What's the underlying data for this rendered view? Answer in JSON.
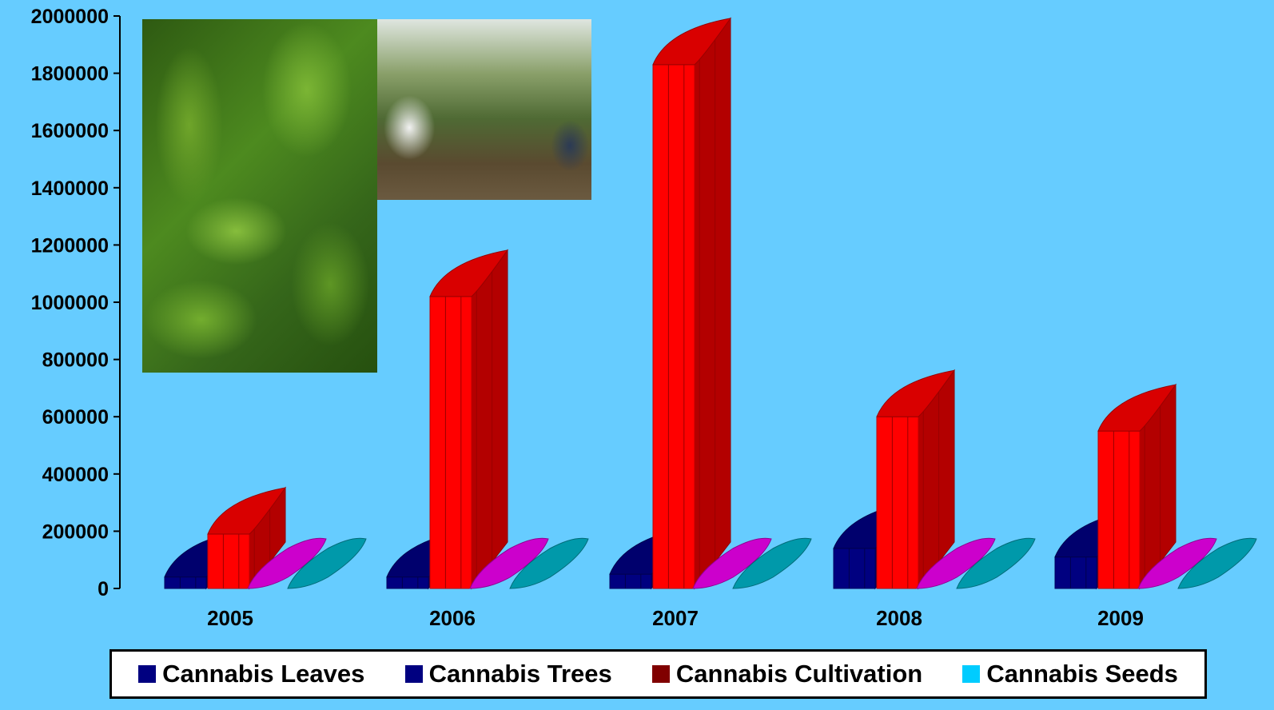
{
  "chart_data": {
    "type": "bar",
    "categories": [
      "2005",
      "2006",
      "2007",
      "2008",
      "2009"
    ],
    "ylim": [
      0,
      2000000
    ],
    "yticks": [
      "0",
      "200000",
      "400000",
      "600000",
      "800000",
      "1000000",
      "1200000",
      "1400000",
      "1600000",
      "1800000",
      "2000000"
    ],
    "series": [
      {
        "name": "Cannabis Leaves",
        "color": "#000080",
        "values": [
          40000,
          40000,
          50000,
          140000,
          110000
        ]
      },
      {
        "name": "Cannabis Trees",
        "color": "#000080",
        "values": [
          0,
          0,
          0,
          0,
          0
        ]
      },
      {
        "name": "Cannabis Cultivation",
        "color": "#FF0000",
        "values": [
          190000,
          1020000,
          1830000,
          600000,
          550000
        ]
      },
      {
        "name": "Cannabis Seeds",
        "color": "#00CCFF",
        "values": [
          0,
          0,
          0,
          0,
          0
        ]
      }
    ],
    "series_colors_rendered": {
      "pink_floor": "#CC00CC",
      "teal_floor": "#0099AA"
    },
    "grid": false,
    "legend_position": "bottom",
    "legend_swatch_colors": [
      "#000080",
      "#000080",
      "#800000",
      "#00CCFF"
    ]
  }
}
